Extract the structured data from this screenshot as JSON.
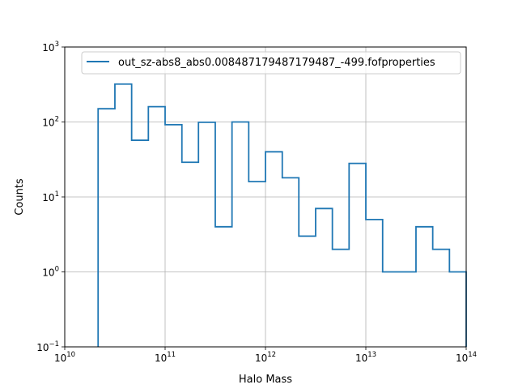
{
  "chart_data": {
    "type": "line",
    "subtype": "step-histogram",
    "title": "",
    "xlabel": "Halo Mass",
    "ylabel": "Counts",
    "x_scale": "log",
    "y_scale": "log",
    "xlim": [
      10000000000.0,
      100000000000000.0
    ],
    "ylim": [
      0.1,
      1000
    ],
    "x_ticks": [
      {
        "value": 10000000000.0,
        "base": "10",
        "exp": "10"
      },
      {
        "value": 100000000000.0,
        "base": "10",
        "exp": "11"
      },
      {
        "value": 1000000000000.0,
        "base": "10",
        "exp": "12"
      },
      {
        "value": 10000000000000.0,
        "base": "10",
        "exp": "13"
      },
      {
        "value": 100000000000000.0,
        "base": "10",
        "exp": "14"
      }
    ],
    "y_ticks": [
      {
        "value": 0.1,
        "base": "10",
        "exp": "−1"
      },
      {
        "value": 1,
        "base": "10",
        "exp": "0"
      },
      {
        "value": 10,
        "base": "10",
        "exp": "1"
      },
      {
        "value": 100,
        "base": "10",
        "exp": "2"
      },
      {
        "value": 1000,
        "base": "10",
        "exp": "3"
      }
    ],
    "grid": true,
    "legend_position": "top-right",
    "series": [
      {
        "name": "out_sz-abs8_abs0.008487179487179487_-499.fofproperties",
        "color": "#1f77b4",
        "bin_edges": [
          21500000000.0,
          31600000000.0,
          46400000000.0,
          68100000000.0,
          100000000000.0,
          147000000000.0,
          215000000000.0,
          316000000000.0,
          464000000000.0,
          681000000000.0,
          1000000000000.0,
          1470000000000.0,
          2150000000000.0,
          3160000000000.0,
          4640000000000.0,
          6810000000000.0,
          10000000000000.0,
          14700000000000.0,
          21500000000000.0,
          31600000000000.0,
          46400000000000.0,
          68100000000000.0,
          100000000000000.0
        ],
        "counts": [
          150,
          320,
          57,
          160,
          92,
          29,
          99,
          4,
          100,
          16,
          40,
          18,
          3,
          7,
          2,
          28,
          5,
          1,
          1,
          4,
          2,
          1
        ]
      }
    ]
  }
}
